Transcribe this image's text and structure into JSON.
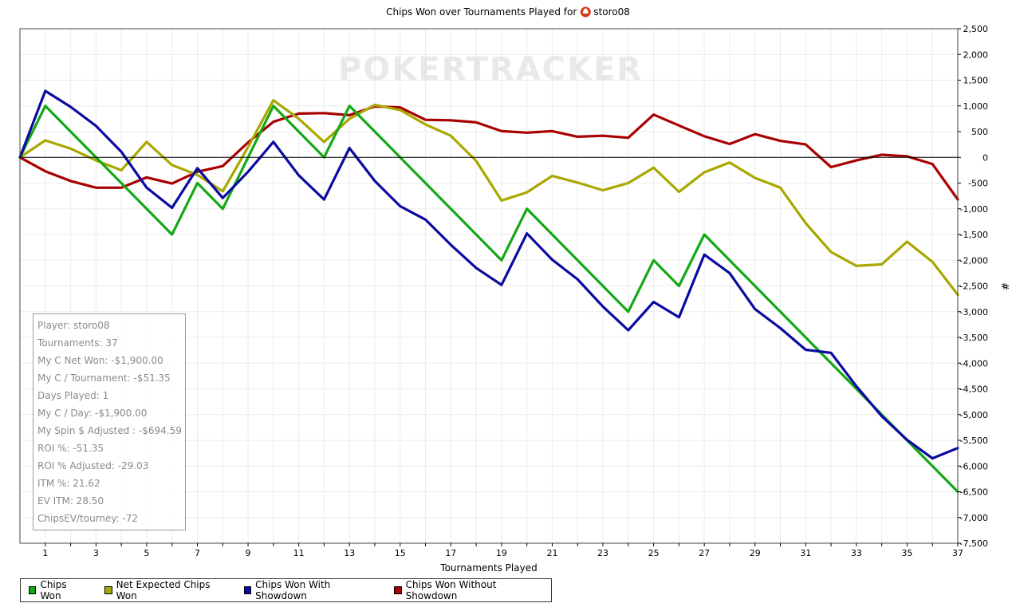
{
  "chart_data": {
    "type": "line",
    "title": "Chips Won over Tournaments Played for",
    "player_name": "storo08",
    "watermark": "POKERTRACKER",
    "xlabel": "Tournaments Played",
    "ylabel": "#",
    "xlim": [
      0,
      37
    ],
    "ylim": [
      -7500,
      2500
    ],
    "x_ticks": [
      1,
      3,
      5,
      7,
      9,
      11,
      13,
      15,
      17,
      19,
      21,
      23,
      25,
      27,
      29,
      31,
      33,
      35,
      37
    ],
    "y_ticks": [
      2500,
      2000,
      1500,
      1000,
      500,
      0,
      -500,
      -1000,
      -1500,
      -2000,
      -2500,
      -3000,
      -3500,
      -4000,
      -4500,
      -5000,
      -5500,
      -6000,
      -6500,
      -7000,
      -7500
    ],
    "y_tick_labels": [
      "2,500",
      "2,000",
      "1,500",
      "1,000",
      "500",
      "0",
      "-500",
      "-1,000",
      "-1,500",
      "-2,000",
      "-2,500",
      "-3,000",
      "-3,500",
      "-4,000",
      "-4,500",
      "-5,000",
      "-5,500",
      "-6,000",
      "-6,500",
      "-7,000",
      "-7,500"
    ],
    "grid": true,
    "legend_position": "bottom-left",
    "x": [
      0,
      1,
      2,
      3,
      4,
      5,
      6,
      7,
      8,
      9,
      10,
      11,
      12,
      13,
      14,
      15,
      16,
      17,
      18,
      19,
      20,
      21,
      22,
      23,
      24,
      25,
      26,
      27,
      28,
      29,
      30,
      31,
      32,
      33,
      34,
      35,
      36,
      37
    ],
    "series": [
      {
        "name": "Chips Won",
        "color": "#14a814",
        "values": [
          0,
          1000,
          500,
          0,
          -500,
          -1000,
          -1500,
          -500,
          -1000,
          0,
          1000,
          500,
          0,
          1000,
          500,
          0,
          -500,
          -1000,
          -1500,
          -2000,
          -1000,
          -1500,
          -2000,
          -2500,
          -3000,
          -2000,
          -2500,
          -1500,
          -2000,
          -2500,
          -3000,
          -3500,
          -4000,
          -4500,
          -5000,
          -5500,
          -6000,
          -6500
        ]
      },
      {
        "name": "Net Expected Chips Won",
        "color": "#a8a800",
        "values": [
          0,
          330,
          170,
          -60,
          -250,
          300,
          -150,
          -340,
          -660,
          200,
          1110,
          750,
          300,
          750,
          1020,
          920,
          640,
          420,
          -70,
          -840,
          -680,
          -360,
          -490,
          -640,
          -500,
          -200,
          -670,
          -290,
          -100,
          -400,
          -590,
          -1280,
          -1840,
          -2110,
          -2080,
          -1640,
          -2030,
          -2670
        ]
      },
      {
        "name": "Chips Won With Showdown",
        "color": "#0a0aa0",
        "values": [
          0,
          1290,
          980,
          610,
          110,
          -590,
          -980,
          -210,
          -790,
          -280,
          300,
          -350,
          -820,
          180,
          -460,
          -950,
          -1210,
          -1700,
          -2150,
          -2480,
          -1480,
          -1990,
          -2370,
          -2900,
          -3360,
          -2810,
          -3110,
          -1890,
          -2250,
          -2950,
          -3320,
          -3740,
          -3800,
          -4450,
          -5030,
          -5490,
          -5850,
          -5650
        ]
      },
      {
        "name": "Chips Won Without Showdown",
        "color": "#a80000",
        "values": [
          0,
          -270,
          -460,
          -590,
          -590,
          -390,
          -510,
          -280,
          -170,
          290,
          690,
          850,
          860,
          820,
          990,
          970,
          730,
          720,
          680,
          510,
          480,
          510,
          400,
          420,
          380,
          830,
          620,
          410,
          260,
          450,
          320,
          250,
          -190,
          -60,
          50,
          20,
          -130,
          -820
        ]
      }
    ]
  },
  "stats_box": {
    "lines": [
      "Player: storo08",
      "Tournaments: 37",
      "My C Net Won: -$1,900.00",
      "My C / Tournament: -$51.35",
      "Days Played: 1",
      "My C / Day: -$1,900.00",
      "My Spin $ Adjusted : -$694.59",
      "ROI %: -51.35",
      "ROI % Adjusted: -29.03",
      "ITM %: 21.62",
      "EV ITM: 28.50",
      "ChipsEV/tourney: -72"
    ]
  },
  "legend": {
    "items": [
      {
        "label": "Chips Won",
        "color": "#14a814"
      },
      {
        "label": "Net Expected Chips Won",
        "color": "#a8a800"
      },
      {
        "label": "Chips Won With Showdown",
        "color": "#0a0aa0"
      },
      {
        "label": "Chips Won Without Showdown",
        "color": "#a80000"
      }
    ]
  }
}
